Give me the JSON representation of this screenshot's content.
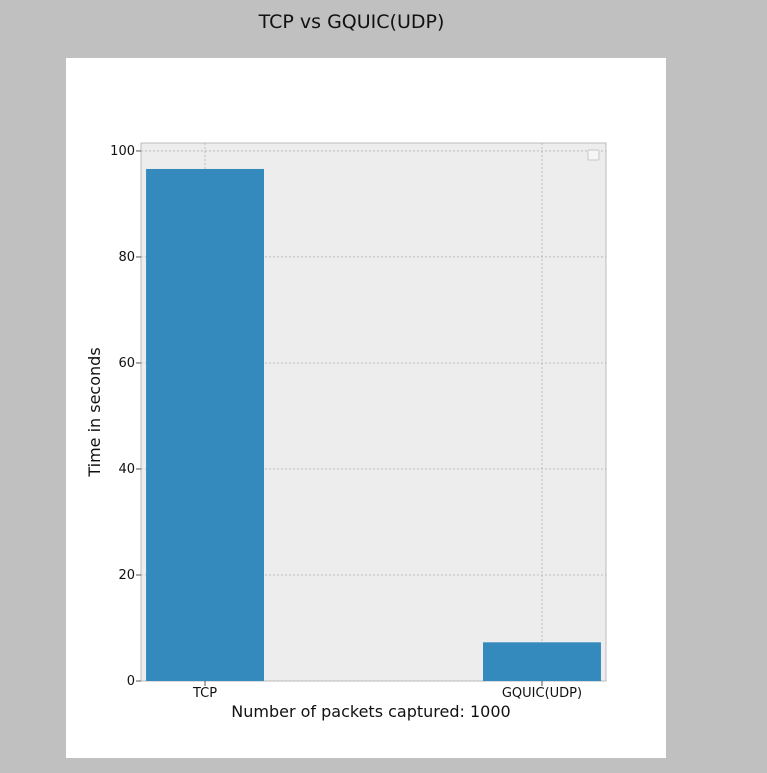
{
  "window": {
    "title": "TCP vs GQUIC(UDP)"
  },
  "colors": {
    "background": "#c0c0c0",
    "figure": "#ffffff",
    "plot_area": "#ededed",
    "bar": "#348abd",
    "grid": "#b0b0b0"
  },
  "chart_data": {
    "type": "bar",
    "title": "",
    "categories": [
      "TCP",
      "GQUIC(UDP)"
    ],
    "series": [
      {
        "values": [
          96.6,
          7.3
        ]
      }
    ],
    "xlabel": "Number of packets captured: 1000",
    "ylabel": "Time in seconds",
    "ylim": [
      0,
      101.5
    ],
    "yticks": [
      0,
      20,
      40,
      60,
      80,
      100
    ],
    "grid": true,
    "legend": "top-right (empty)"
  }
}
